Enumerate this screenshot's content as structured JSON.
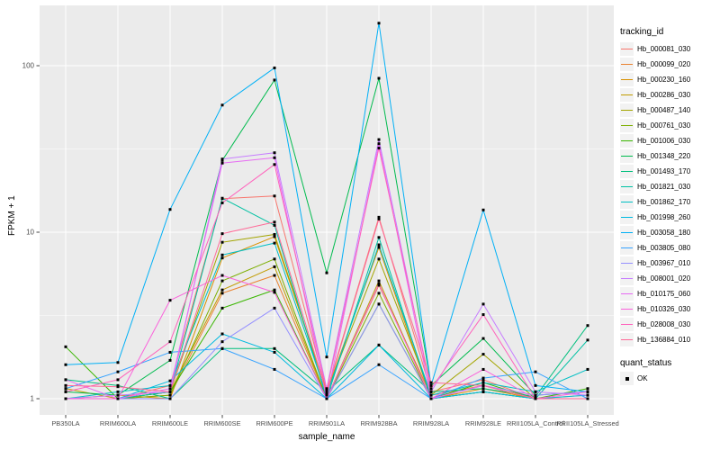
{
  "axes": {
    "x_title": "sample_name",
    "y_title": "FPKM + 1",
    "y_tick_labels": [
      "1",
      "10",
      "100"
    ]
  },
  "legend": {
    "tracking_title": "tracking_id",
    "quant_title": "quant_status",
    "quant_items": [
      {
        "label": "OK",
        "marker": "black-square"
      }
    ]
  },
  "colors": {
    "panel_background": "#EBEBEB",
    "gridline": "#FFFFFF",
    "tick_text": "#4D4D4D",
    "tick_mark": "#333333",
    "point": "#000000",
    "legend_key_background": "#F2F2F2"
  },
  "chart_data": {
    "type": "line",
    "title": "",
    "xlabel": "sample_name",
    "ylabel": "FPKM + 1",
    "y_scale": "log10",
    "ylim": [
      0.8,
      224
    ],
    "y_major_ticks": [
      1,
      10,
      100
    ],
    "y_minor_gridlines": [
      3.1623,
      31.623
    ],
    "grid": "on",
    "legend_position": "right",
    "point_marker": "filled-black-square",
    "categories": [
      "PB350LA",
      "RRIM600LA",
      "RRIM600LE",
      "RRIM600SE",
      "RRIM600PE",
      "RRIM901LA",
      "RRIM928BA",
      "RRIM928LA",
      "RRIM928LE",
      "RRII105LA_Control",
      "RRII105LA_Stressed"
    ],
    "series": [
      {
        "name": "Hb_000081_030",
        "color": "#F8766D",
        "values": [
          1.0,
          1.0,
          1.2,
          15.9,
          16.5,
          1.1,
          12.3,
          1.1,
          1.3,
          1.0,
          1.0
        ]
      },
      {
        "name": "Hb_000099_020",
        "color": "#EA8331",
        "values": [
          1.0,
          1.0,
          1.05,
          4.3,
          5.5,
          1.0,
          4.8,
          1.05,
          1.2,
          1.0,
          1.05
        ]
      },
      {
        "name": "Hb_000230_160",
        "color": "#D89000",
        "values": [
          1.0,
          1.05,
          1.0,
          7.0,
          9.4,
          1.1,
          8.1,
          1.0,
          1.15,
          1.0,
          1.0
        ]
      },
      {
        "name": "Hb_000286_030",
        "color": "#C09B00",
        "values": [
          1.15,
          1.0,
          1.1,
          4.5,
          6.2,
          1.0,
          5.1,
          1.0,
          1.1,
          1.0,
          1.0
        ]
      },
      {
        "name": "Hb_000487_140",
        "color": "#A3A500",
        "values": [
          1.0,
          1.0,
          1.1,
          8.7,
          9.7,
          1.1,
          6.9,
          1.05,
          1.85,
          1.0,
          1.0
        ]
      },
      {
        "name": "Hb_000761_030",
        "color": "#7CAE00",
        "values": [
          1.0,
          1.0,
          1.05,
          5.1,
          6.9,
          1.0,
          4.3,
          1.0,
          1.1,
          1.0,
          1.0
        ]
      },
      {
        "name": "Hb_001006_030",
        "color": "#39B600",
        "values": [
          2.05,
          1.0,
          1.1,
          3.5,
          4.5,
          1.0,
          3.7,
          1.0,
          1.25,
          1.0,
          1.15
        ]
      },
      {
        "name": "Hb_001348_220",
        "color": "#00BB4E",
        "values": [
          1.1,
          1.05,
          1.7,
          27.0,
          82.0,
          5.7,
          84.0,
          1.2,
          2.3,
          1.05,
          1.1
        ]
      },
      {
        "name": "Hb_001493_170",
        "color": "#00BF7D",
        "values": [
          1.3,
          1.2,
          1.0,
          2.0,
          2.0,
          1.1,
          2.1,
          1.1,
          1.15,
          1.03,
          2.75
        ]
      },
      {
        "name": "Hb_001821_030",
        "color": "#00C1A3",
        "values": [
          1.0,
          1.0,
          1.1,
          16.0,
          11.0,
          1.0,
          9.3,
          1.0,
          1.1,
          1.0,
          2.25
        ]
      },
      {
        "name": "Hb_001862_170",
        "color": "#00BFC4",
        "values": [
          1.0,
          1.1,
          1.2,
          7.3,
          8.6,
          1.05,
          8.4,
          1.05,
          1.25,
          1.1,
          1.5
        ]
      },
      {
        "name": "Hb_001998_260",
        "color": "#00BAE0",
        "values": [
          1.0,
          1.0,
          1.28,
          2.45,
          1.9,
          1.0,
          2.1,
          1.0,
          1.1,
          1.0,
          1.05
        ]
      },
      {
        "name": "Hb_003058_180",
        "color": "#00B0F6",
        "values": [
          1.6,
          1.65,
          13.7,
          58.0,
          97.0,
          1.78,
          180.0,
          1.2,
          13.6,
          1.2,
          1.1
        ]
      },
      {
        "name": "Hb_003805_080",
        "color": "#35A2FF",
        "values": [
          1.15,
          1.45,
          1.9,
          2.0,
          1.5,
          1.0,
          1.6,
          1.0,
          1.33,
          1.45,
          1.0
        ]
      },
      {
        "name": "Hb_003967_010",
        "color": "#9590FF",
        "values": [
          1.0,
          1.0,
          1.0,
          2.2,
          3.5,
          1.0,
          3.7,
          1.0,
          1.2,
          1.05,
          1.1
        ]
      },
      {
        "name": "Hb_008001_020",
        "color": "#C77CFF",
        "values": [
          1.0,
          1.05,
          1.1,
          27.5,
          30.0,
          1.15,
          36.0,
          1.1,
          3.7,
          1.1,
          1.05
        ]
      },
      {
        "name": "Hb_010175_060",
        "color": "#E76BF3",
        "values": [
          1.3,
          1.0,
          1.15,
          26.0,
          28.0,
          1.0,
          34.0,
          1.0,
          1.2,
          1.0,
          1.0
        ]
      },
      {
        "name": "Hb_010326_030",
        "color": "#FA62DB",
        "values": [
          1.0,
          1.0,
          3.9,
          5.5,
          4.35,
          1.0,
          4.9,
          1.0,
          1.5,
          1.0,
          1.1
        ]
      },
      {
        "name": "Hb_028008_030",
        "color": "#FF62BC",
        "values": [
          1.1,
          1.3,
          2.2,
          15.0,
          25.5,
          1.12,
          32.0,
          1.15,
          3.2,
          1.0,
          1.0
        ]
      },
      {
        "name": "Hb_136884_010",
        "color": "#FF6A98",
        "values": [
          1.2,
          1.18,
          1.1,
          9.8,
          11.5,
          1.08,
          12.0,
          1.25,
          1.2,
          1.0,
          1.0
        ]
      }
    ]
  }
}
